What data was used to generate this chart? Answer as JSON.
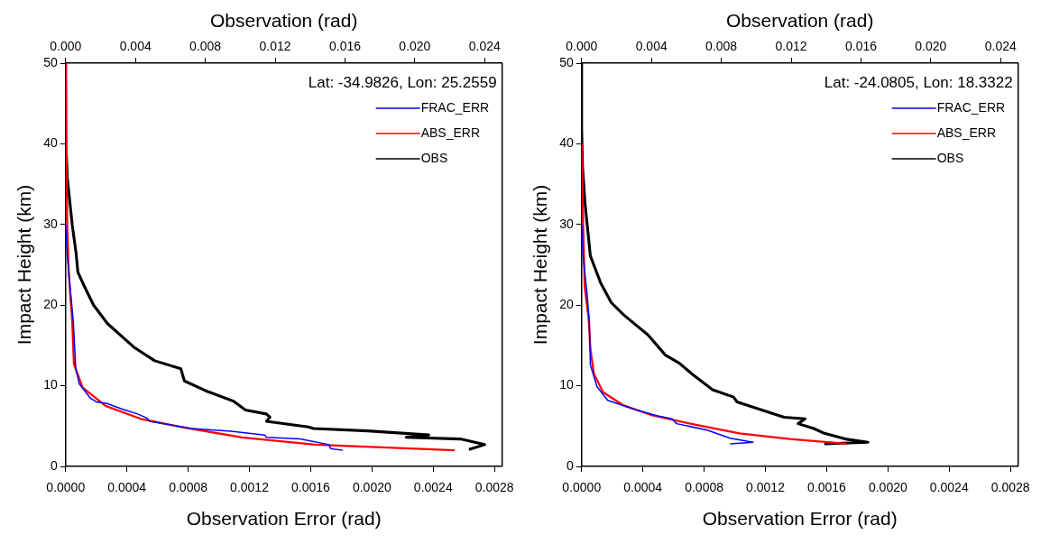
{
  "chart_data": [
    {
      "type": "line",
      "xlabel": "Observation Error (rad)",
      "x2label": "Observation (rad)",
      "ylabel": "Impact Height (km)",
      "annotations": [
        "Lat: -34.9826, Lon: 25.2559"
      ],
      "legend": "top right",
      "marker": "none",
      "line_style": "solid",
      "grid": false,
      "xlim": [
        0,
        0.00285
      ],
      "xticks": [
        {
          "value": 0,
          "label": "0.0000"
        },
        {
          "value": 0.0004,
          "label": "0.0004"
        },
        {
          "value": 0.0008,
          "label": "0.0008"
        },
        {
          "value": 0.0012,
          "label": "0.0012"
        },
        {
          "value": 0.0016,
          "label": "0.0016"
        },
        {
          "value": 0.002,
          "label": "0.0020"
        },
        {
          "value": 0.0024,
          "label": "0.0024"
        },
        {
          "value": 0.0028,
          "label": "0.0028"
        }
      ],
      "x2lim": [
        0,
        0.025
      ],
      "x2ticks": [
        {
          "value": 0,
          "label": "0.000"
        },
        {
          "value": 0.004,
          "label": "0.004"
        },
        {
          "value": 0.008,
          "label": "0.008"
        },
        {
          "value": 0.012,
          "label": "0.012"
        },
        {
          "value": 0.016,
          "label": "0.016"
        },
        {
          "value": 0.02,
          "label": "0.020"
        },
        {
          "value": 0.024,
          "label": "0.024"
        }
      ],
      "ylim": [
        0,
        50
      ],
      "yticks": [
        0,
        10,
        20,
        30,
        40,
        50
      ],
      "series": [
        {
          "name": "FRAC_ERR",
          "color": "#0000ff",
          "x": [
            0.00181,
            0.00173,
            0.00172,
            0.00153,
            0.00131,
            0.0013,
            0.00106,
            0.00082,
            0.00055,
            0.00053,
            0.00047,
            0.00037,
            0.00027,
            0.0002,
            0.00016,
            9e-05,
            6.6e-05,
            5e-05,
            3e-05,
            1e-05,
            0
          ],
          "values": [
            2.0,
            2.2,
            2.7,
            3.4,
            3.6,
            3.9,
            4.4,
            4.7,
            5.6,
            6.0,
            6.5,
            7.1,
            7.8,
            8.0,
            8.5,
            10.2,
            12.1,
            18,
            22,
            26.4,
            30
          ]
        },
        {
          "name": "ABS_ERR",
          "color": "#ff0000",
          "x": [
            0.00254,
            0.00163,
            0.00115,
            0.00078,
            0.00049,
            0.00026,
            0.00011,
            5.4e-05,
            4.3e-05,
            2e-05,
            1e-05,
            5e-06,
            0
          ],
          "values": [
            2.0,
            2.7,
            3.6,
            4.8,
            5.9,
            7.5,
            9.8,
            12.7,
            18,
            24,
            30,
            40,
            50
          ]
        },
        {
          "name": "OBS",
          "color": "#000000",
          "axis": "x2",
          "x": [
            0.0231,
            0.024,
            0.0226,
            0.0195,
            0.0208,
            0.0173,
            0.0142,
            0.0139,
            0.0115,
            0.0117,
            0.0115,
            0.0103,
            0.0096,
            0.008,
            0.0068,
            0.0066,
            0.0051,
            0.0039,
            0.0024,
            0.0016,
            0.0011,
            0.0007,
            0.0006,
            0.00038,
            0.0001,
            0,
            0
          ],
          "values": [
            2.1,
            2.7,
            3.4,
            3.6,
            3.9,
            4.4,
            4.7,
            4.9,
            5.6,
            6.1,
            6.5,
            7.0,
            8.1,
            9.4,
            10.6,
            12.1,
            13.1,
            14.8,
            17.7,
            20.0,
            22.2,
            24.1,
            26.4,
            29.9,
            35.7,
            40.9,
            50
          ]
        }
      ]
    },
    {
      "type": "line",
      "xlabel": "Observation Error (rad)",
      "x2label": "Observation (rad)",
      "ylabel": "Impact Height (km)",
      "annotations": [
        "Lat: -24.0805, Lon: 18.3322"
      ],
      "legend": "top right",
      "marker": "none",
      "line_style": "solid",
      "grid": false,
      "xlim": [
        0,
        0.00285
      ],
      "xticks": [
        {
          "value": 0,
          "label": "0.0000"
        },
        {
          "value": 0.0004,
          "label": "0.0004"
        },
        {
          "value": 0.0008,
          "label": "0.0008"
        },
        {
          "value": 0.0012,
          "label": "0.0012"
        },
        {
          "value": 0.0016,
          "label": "0.0016"
        },
        {
          "value": 0.002,
          "label": "0.0020"
        },
        {
          "value": 0.0024,
          "label": "0.0024"
        },
        {
          "value": 0.0028,
          "label": "0.0028"
        }
      ],
      "x2lim": [
        0,
        0.025
      ],
      "x2ticks": [
        {
          "value": 0,
          "label": "0.000"
        },
        {
          "value": 0.004,
          "label": "0.004"
        },
        {
          "value": 0.008,
          "label": "0.008"
        },
        {
          "value": 0.012,
          "label": "0.012"
        },
        {
          "value": 0.016,
          "label": "0.016"
        },
        {
          "value": 0.02,
          "label": "0.020"
        },
        {
          "value": 0.024,
          "label": "0.024"
        }
      ],
      "ylim": [
        0,
        50
      ],
      "yticks": [
        0,
        10,
        20,
        30,
        40,
        50
      ],
      "series": [
        {
          "name": "FRAC_ERR",
          "color": "#0000ff",
          "x": [
            0.00097,
            0.00112,
            0.00097,
            0.00082,
            0.00062,
            0.00059,
            0.00049,
            0.00036,
            0.00017,
            0.0001,
            5.7e-05,
            5e-05,
            3.5e-05,
            1e-05,
            0
          ],
          "values": [
            2.8,
            3.0,
            3.5,
            4.5,
            5.3,
            5.9,
            6.3,
            7.0,
            8.2,
            9.9,
            12.6,
            18,
            21.5,
            26,
            30
          ]
        },
        {
          "name": "ABS_ERR",
          "color": "#ff0000",
          "x": [
            0.00173,
            0.00136,
            0.00103,
            0.00071,
            0.00045,
            0.00027,
            0.00014,
            8e-05,
            5.7e-05,
            4.6e-05,
            2e-05,
            1e-05,
            0
          ],
          "values": [
            2.8,
            3.4,
            4.1,
            5.3,
            6.4,
            7.6,
            9.2,
            11.5,
            14.6,
            18.4,
            22.3,
            30,
            40
          ]
        },
        {
          "name": "OBS",
          "color": "#000000",
          "axis": "x2",
          "x": [
            0.0139,
            0.0164,
            0.0151,
            0.0139,
            0.0133,
            0.0124,
            0.0128,
            0.0116,
            0.0106,
            0.0089,
            0.0087,
            0.0075,
            0.0063,
            0.0056,
            0.0048,
            0.0038,
            0.0024,
            0.0017,
            0.0011,
            0.0005,
            0.0002,
            5e-05,
            0,
            0
          ],
          "values": [
            2.8,
            3.0,
            3.4,
            4.1,
            4.7,
            5.3,
            5.9,
            6.1,
            6.8,
            8.0,
            8.6,
            9.5,
            11.5,
            12.8,
            13.8,
            16.3,
            18.8,
            20.3,
            22.7,
            26.1,
            32.5,
            37.2,
            42,
            50
          ]
        }
      ]
    }
  ]
}
